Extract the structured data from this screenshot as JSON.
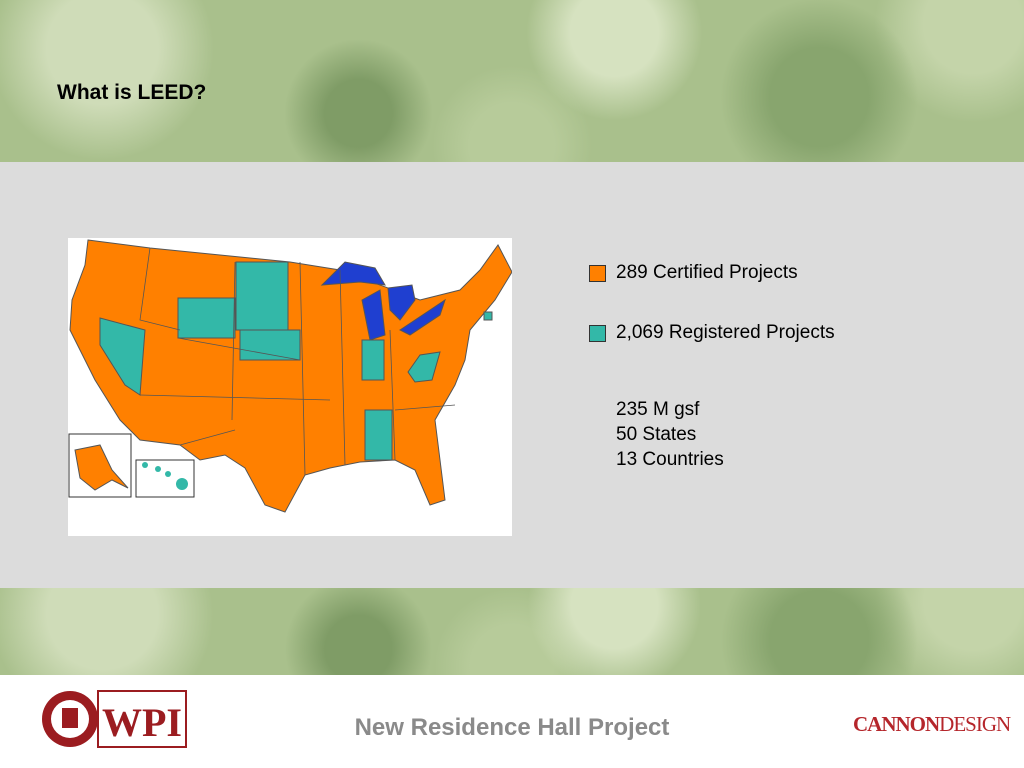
{
  "header": {
    "title": "What is LEED?"
  },
  "legend": [
    {
      "label": "289 Certified Projects",
      "color": "#ff8000"
    },
    {
      "label": "2,069 Registered Projects",
      "color": "#33b8a8"
    }
  ],
  "stats": [
    "235 M gsf",
    "50 States",
    "13 Countries"
  ],
  "footer": {
    "title": "New Residence Hall Project",
    "logo_left": "WPI",
    "logo_right": [
      "CANNON",
      "DESIGN"
    ]
  }
}
